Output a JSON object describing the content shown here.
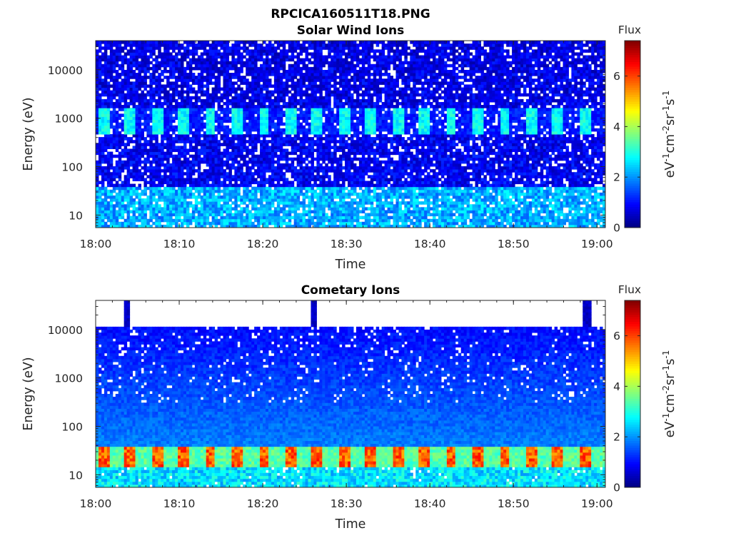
{
  "figure": {
    "title": "RPCICA160511T18.PNG"
  },
  "colormap": {
    "name": "jet",
    "stops": [
      "#00007f",
      "#0000ff",
      "#007fff",
      "#00ffff",
      "#7fff7f",
      "#ffff00",
      "#ff7f00",
      "#ff0000",
      "#7f0000"
    ]
  },
  "chart_data": [
    {
      "type": "heatmap",
      "title": "Solar Wind Ions",
      "xlabel": "Time",
      "ylabel": "Energy (eV)",
      "x_ticks": [
        "18:00",
        "18:10",
        "18:20",
        "18:30",
        "18:40",
        "18:50",
        "19:00"
      ],
      "xlim": [
        "18:00",
        "19:01"
      ],
      "y_scale": "log",
      "y_ticks": [
        10,
        100,
        1000,
        10000
      ],
      "y_tick_labels": [
        "10",
        "100",
        "1000",
        "10000"
      ],
      "ylim": [
        5.5,
        40000
      ],
      "colorbar": {
        "title": "Flux",
        "label": "eV-1cm-2sr-1s-1",
        "ticks": [
          0,
          2,
          4,
          6
        ],
        "range": [
          0,
          7.4
        ]
      },
      "features": [
        {
          "energy_range": [
            500,
            1700
          ],
          "flux_peak": 3.0,
          "pattern": "periodic bursts about every 3 min"
        },
        {
          "energy_range": [
            6,
            40
          ],
          "flux_peak": 2.5
        },
        {
          "energy_range": [
            40,
            40000
          ],
          "flux_peak": 1.0,
          "pattern": "sparse background with gaps"
        }
      ]
    },
    {
      "type": "heatmap",
      "title": "Cometary Ions",
      "xlabel": "Time",
      "ylabel": "Energy (eV)",
      "x_ticks": [
        "18:00",
        "18:10",
        "18:20",
        "18:30",
        "18:40",
        "18:50",
        "19:00"
      ],
      "xlim": [
        "18:00",
        "19:01"
      ],
      "y_scale": "log",
      "y_ticks": [
        10,
        100,
        1000,
        10000
      ],
      "y_tick_labels": [
        "10",
        "100",
        "1000",
        "10000"
      ],
      "ylim": [
        5.5,
        40000
      ],
      "colorbar": {
        "title": "Flux",
        "label": "eV-1cm-2sr-1s-1",
        "ticks": [
          0,
          2,
          4,
          6
        ],
        "range": [
          0,
          7.4
        ]
      },
      "features": [
        {
          "energy_range": [
            15,
            40
          ],
          "flux_peak": 6.0,
          "pattern": "periodic bursts about every 3 min"
        },
        {
          "energy_range": [
            6,
            15
          ],
          "flux_peak": 3.0
        },
        {
          "energy_range": [
            40,
            11000
          ],
          "flux_peak": 1.2,
          "pattern": "background decreasing with energy"
        },
        {
          "energy_range": [
            11000,
            40000
          ],
          "flux_peak": 0.5,
          "pattern": "isolated spikes"
        }
      ]
    }
  ]
}
